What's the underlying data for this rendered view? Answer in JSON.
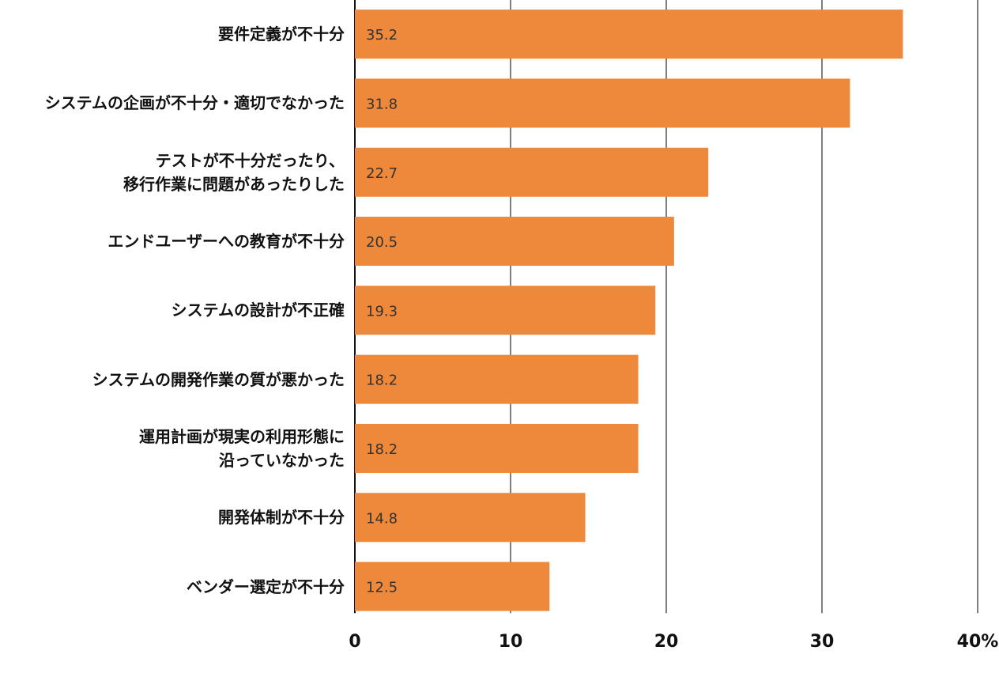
{
  "chart_data": {
    "type": "bar",
    "orientation": "horizontal",
    "categories": [
      "要件定義が不十分",
      "システムの企画が不十分・適切でなかった",
      "テストが不十分だったり、\n移行作業に問題があったりした",
      "エンドユーザーへの教育が不十分",
      "システムの設計が不正確",
      "システムの開発作業の質が悪かった",
      "運用計画が現実の利用形態に\n沿っていなかった",
      "開発体制が不十分",
      "ベンダー選定が不十分"
    ],
    "values": [
      35.2,
      31.8,
      22.7,
      20.5,
      19.3,
      18.2,
      18.2,
      14.8,
      12.5
    ],
    "color": "#ee883a",
    "xlim": [
      0,
      40
    ],
    "xticks": [
      0,
      10,
      20,
      30,
      {
        "value": 40,
        "label": "40%"
      }
    ],
    "grid": true
  }
}
